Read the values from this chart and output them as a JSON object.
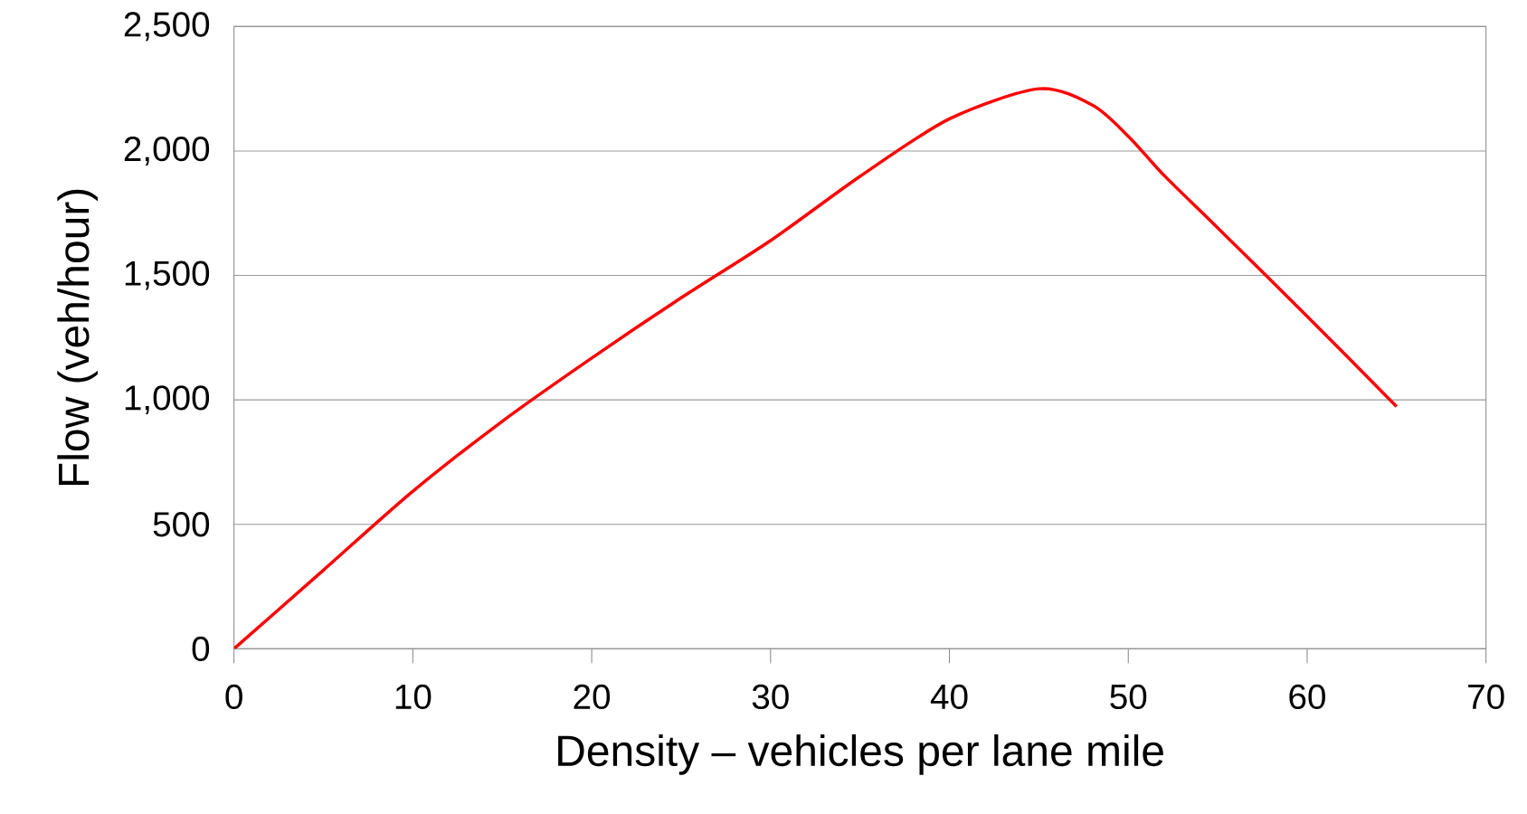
{
  "chart_data": {
    "type": "line",
    "xlabel": "Density – vehicles per lane mile",
    "ylabel": "Flow  (veh/hour)",
    "x": [
      0,
      5,
      10,
      15,
      20,
      25,
      30,
      35,
      40,
      45,
      48,
      50,
      52,
      55,
      60,
      65
    ],
    "series": [
      {
        "color": "#ff0000",
        "values": [
          0,
          316,
          633,
          914,
          1168,
          1410,
          1640,
          1898,
          2129,
          2250,
          2184,
          2059,
          1902,
          1691,
          1336,
          973
        ]
      }
    ],
    "xlim": [
      0,
      70
    ],
    "xticks": [
      0,
      10,
      20,
      30,
      40,
      50,
      60,
      70
    ],
    "ylim": [
      0,
      2500
    ],
    "yticks": [
      {
        "value": 0,
        "label": "0"
      },
      {
        "value": 500,
        "label": "500"
      },
      {
        "value": 1000,
        "label": "1,000"
      },
      {
        "value": 1500,
        "label": "1,500"
      },
      {
        "value": 2000,
        "label": "2,000"
      },
      {
        "value": 2500,
        "label": "2,500"
      }
    ],
    "grid": "y",
    "marker": "none",
    "line_style": "solid"
  }
}
